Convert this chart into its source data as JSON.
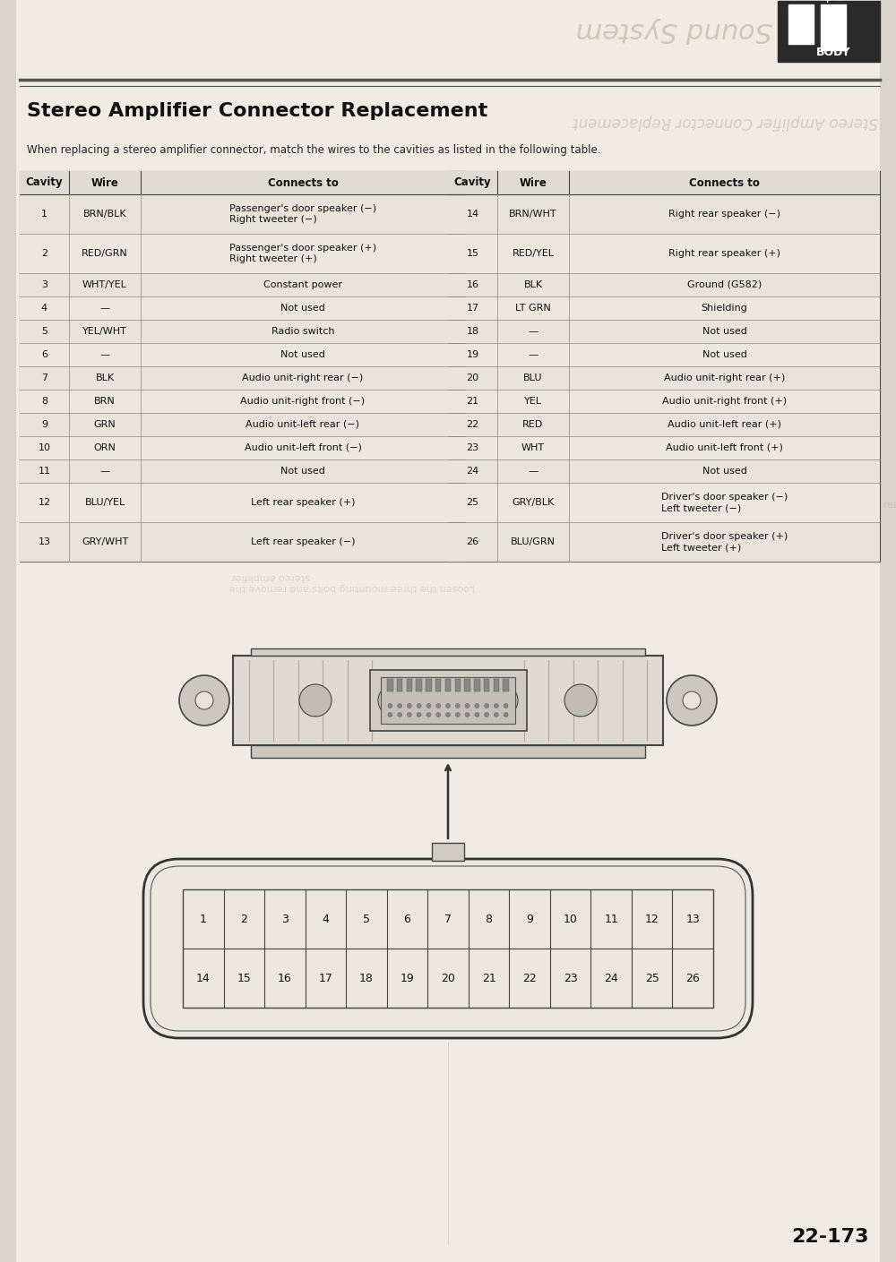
{
  "title": "Stereo Amplifier Connector Replacement",
  "subtitle": "When replacing a stereo amplifier connector, match the wires to the cavities as listed in the following table.",
  "header_left": [
    "Cavity",
    "Wire",
    "Connects to"
  ],
  "header_right": [
    "Cavity",
    "Wire",
    "Connects to"
  ],
  "rows_left": [
    [
      "1",
      "BRN/BLK",
      "Passenger's door speaker (−)\nRight tweeter (−)"
    ],
    [
      "2",
      "RED/GRN",
      "Passenger's door speaker (+)\nRight tweeter (+)"
    ],
    [
      "3",
      "WHT/YEL",
      "Constant power"
    ],
    [
      "4",
      "—",
      "Not used"
    ],
    [
      "5",
      "YEL/WHT",
      "Radio switch"
    ],
    [
      "6",
      "—",
      "Not used"
    ],
    [
      "7",
      "BLK",
      "Audio unit-right rear (−)"
    ],
    [
      "8",
      "BRN",
      "Audio unit-right front (−)"
    ],
    [
      "9",
      "GRN",
      "Audio unit-left rear (−)"
    ],
    [
      "10",
      "ORN",
      "Audio unit-left front (−)"
    ],
    [
      "11",
      "—",
      "Not used"
    ],
    [
      "12",
      "BLU/YEL",
      "Left rear speaker (+)"
    ],
    [
      "13",
      "GRY/WHT",
      "Left rear speaker (−)"
    ]
  ],
  "rows_right": [
    [
      "14",
      "BRN/WHT",
      "Right rear speaker (−)"
    ],
    [
      "15",
      "RED/YEL",
      "Right rear speaker (+)"
    ],
    [
      "16",
      "BLK",
      "Ground (G582)"
    ],
    [
      "17",
      "LT GRN",
      "Shielding"
    ],
    [
      "18",
      "—",
      "Not used"
    ],
    [
      "19",
      "—",
      "Not used"
    ],
    [
      "20",
      "BLU",
      "Audio unit-right rear (+)"
    ],
    [
      "21",
      "YEL",
      "Audio unit-right front (+)"
    ],
    [
      "22",
      "RED",
      "Audio unit-left rear (+)"
    ],
    [
      "23",
      "WHT",
      "Audio unit-left front (+)"
    ],
    [
      "24",
      "—",
      "Not used"
    ],
    [
      "25",
      "GRY/BLK",
      "Driver's door speaker (−)\nLeft tweeter (−)"
    ],
    [
      "26",
      "BLU/GRN",
      "Driver's door speaker (+)\nLeft tweeter (+)"
    ]
  ],
  "connector_numbers_top": [
    1,
    2,
    3,
    4,
    5,
    6,
    7,
    8,
    9,
    10,
    11,
    12,
    13
  ],
  "connector_numbers_bottom": [
    14,
    15,
    16,
    17,
    18,
    19,
    20,
    21,
    22,
    23,
    24,
    25,
    26
  ],
  "page_number": "22-173",
  "watermark_text": "Sound System",
  "body_label": "BODY",
  "bg_color": "#d8d4cc",
  "page_bg": "#f0ece4",
  "table_bg": "#f0ece4",
  "header_bg": "#d0ccc4"
}
